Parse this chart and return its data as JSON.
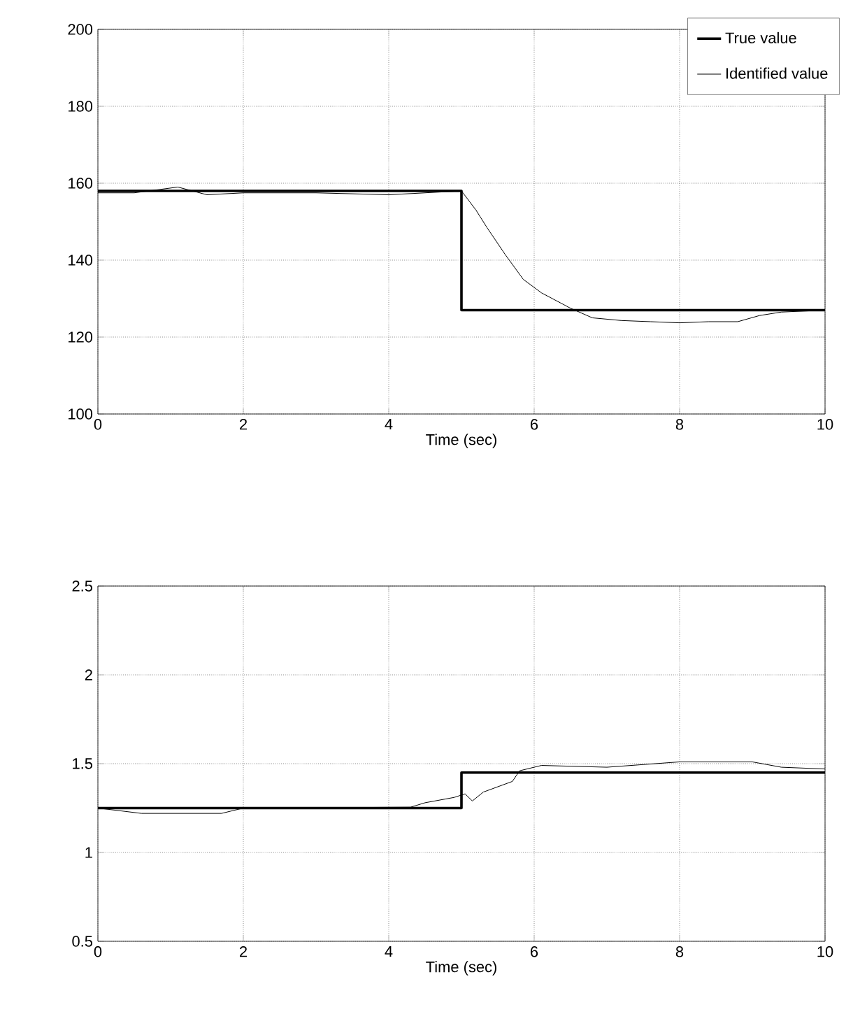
{
  "chart_data": [
    {
      "type": "line",
      "xlabel": "Time (sec)",
      "xlim": [
        0,
        10
      ],
      "ylim": [
        100,
        200
      ],
      "xticks": [
        0,
        2,
        4,
        6,
        8,
        10
      ],
      "yticks": [
        100,
        120,
        140,
        160,
        180,
        200
      ],
      "grid": true,
      "legend": "top right",
      "marker": "none",
      "series": [
        {
          "name": "True value",
          "color": "#000000",
          "x": [
            0,
            5,
            5,
            10
          ],
          "values": [
            158,
            158,
            127,
            127
          ]
        },
        {
          "name": "Identified value",
          "color": "#000000",
          "x": [
            0,
            0.5,
            1.1,
            1.5,
            2,
            3,
            4,
            4.5,
            5,
            5.2,
            5.35,
            5.6,
            5.85,
            6.1,
            6.5,
            6.8,
            7.2,
            7.6,
            8,
            8.4,
            8.8,
            9.1,
            9.4,
            10
          ],
          "values": [
            157.5,
            157.5,
            159,
            157,
            157.5,
            157.5,
            157,
            157.5,
            158,
            153,
            148.5,
            141.5,
            135,
            131.5,
            127.5,
            125,
            124.3,
            124,
            123.7,
            124,
            124,
            125.6,
            126.5,
            127
          ]
        }
      ]
    },
    {
      "type": "line",
      "xlabel": "Time (sec)",
      "xlim": [
        0,
        10
      ],
      "ylim": [
        0.5,
        2.5
      ],
      "xticks": [
        0,
        2,
        4,
        6,
        8,
        10
      ],
      "yticks": [
        0.5,
        1,
        1.5,
        2,
        2.5
      ],
      "grid": true,
      "marker": "none",
      "series": [
        {
          "color": "#000000",
          "x": [
            0,
            5,
            5,
            10
          ],
          "values": [
            1.25,
            1.25,
            1.45,
            1.45
          ]
        },
        {
          "color": "#000000",
          "x": [
            0,
            0.6,
            1.7,
            2,
            4.3,
            4.5,
            4.9,
            5.05,
            5.15,
            5.3,
            5.5,
            5.7,
            5.8,
            6.1,
            7,
            8,
            9,
            9.4,
            10
          ],
          "values": [
            1.25,
            1.22,
            1.22,
            1.25,
            1.255,
            1.28,
            1.31,
            1.33,
            1.29,
            1.34,
            1.37,
            1.4,
            1.46,
            1.49,
            1.48,
            1.51,
            1.51,
            1.48,
            1.47
          ]
        }
      ]
    }
  ]
}
